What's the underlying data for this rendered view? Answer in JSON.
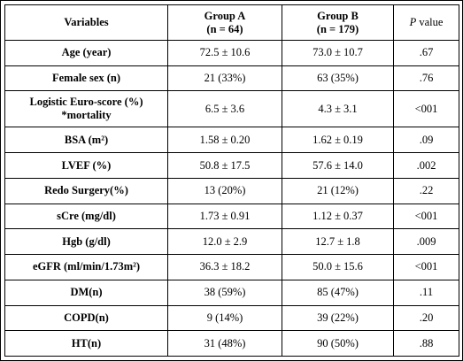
{
  "table": {
    "header": {
      "variables": "Variables",
      "group_a": "Group A",
      "group_a_n": "(n = 64)",
      "group_b": "Group B",
      "group_b_n": "(n = 179)",
      "p_italic": "P",
      "p_rest": " value"
    },
    "rows": [
      {
        "label": "Age (year)",
        "a": "72.5 ± 10.6",
        "b": "73.0 ± 10.7",
        "p": ".67"
      },
      {
        "label": "Female sex (n)",
        "a": "21 (33%)",
        "b": "63 (35%)",
        "p": ".76"
      },
      {
        "label": "Logistic Euro-score (%)",
        "label2": "*mortality",
        "a": "6.5 ± 3.6",
        "b": "4.3 ± 3.1",
        "p": "<001"
      },
      {
        "label": "BSA (m²)",
        "a": "1.58 ± 0.20",
        "b": "1.62 ± 0.19",
        "p": ".09"
      },
      {
        "label": "LVEF (%)",
        "a": "50.8 ± 17.5",
        "b": "57.6 ± 14.0",
        "p": ".002"
      },
      {
        "label": "Redo Surgery(%)",
        "a": "13 (20%)",
        "b": "21 (12%)",
        "p": ".22"
      },
      {
        "label": "sCre (mg/dl)",
        "a": "1.73 ± 0.91",
        "b": "1.12 ± 0.37",
        "p": "<001"
      },
      {
        "label": "Hgb (g/dl)",
        "a": "12.0 ± 2.9",
        "b": "12.7 ± 1.8",
        "p": ".009"
      },
      {
        "label": "eGFR (ml/min/1.73m²)",
        "a": "36.3 ± 18.2",
        "b": "50.0 ± 15.6",
        "p": "<001"
      },
      {
        "label": "DM(n)",
        "a": "38 (59%)",
        "b": "85 (47%)",
        "p": ".11"
      },
      {
        "label": "COPD(n)",
        "a": "9 (14%)",
        "b": "39 (22%)",
        "p": ".20"
      },
      {
        "label": "HT(n)",
        "a": "31 (48%)",
        "b": "90 (50%)",
        "p": ".88"
      }
    ]
  }
}
